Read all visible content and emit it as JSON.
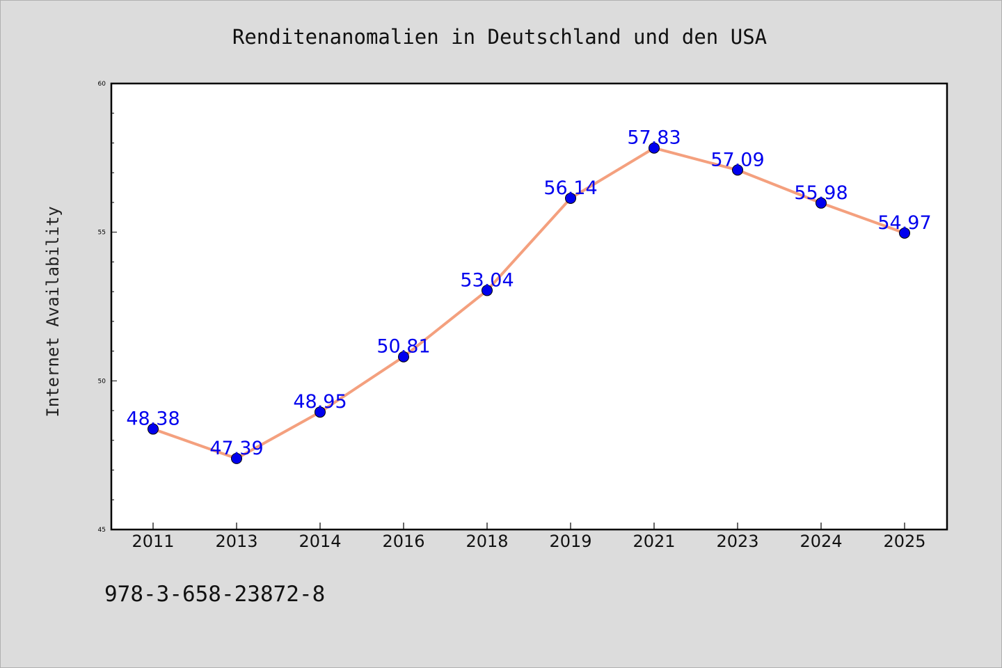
{
  "chart_data": {
    "type": "line",
    "title": "Renditenanomalien in Deutschland und den USA",
    "xlabel": "",
    "ylabel": "Internet Availability",
    "categories": [
      "2011",
      "2013",
      "2014",
      "2016",
      "2018",
      "2019",
      "2021",
      "2023",
      "2024",
      "2025"
    ],
    "series": [
      {
        "values": [
          48.38,
          47.39,
          48.95,
          50.81,
          53.04,
          56.14,
          57.83,
          57.09,
          55.98,
          54.97
        ],
        "labels": [
          "48.38",
          "47.39",
          "48.95",
          "50.81",
          "53.04",
          "56.14",
          "57.83",
          "57.09",
          "55.98",
          "54.97"
        ],
        "color": "#f4a07e",
        "marker_color": "#0000ee"
      }
    ],
    "ylim": [
      45,
      60
    ],
    "yticks": [
      "45",
      "50",
      "55",
      "60"
    ],
    "grid": false,
    "legend": "none"
  },
  "footer": {
    "isbn": "978-3-658-23872-8"
  },
  "colors": {
    "background": "#dcdcdc",
    "plot_area": "#ffffff",
    "label_color": "#0000ee"
  }
}
